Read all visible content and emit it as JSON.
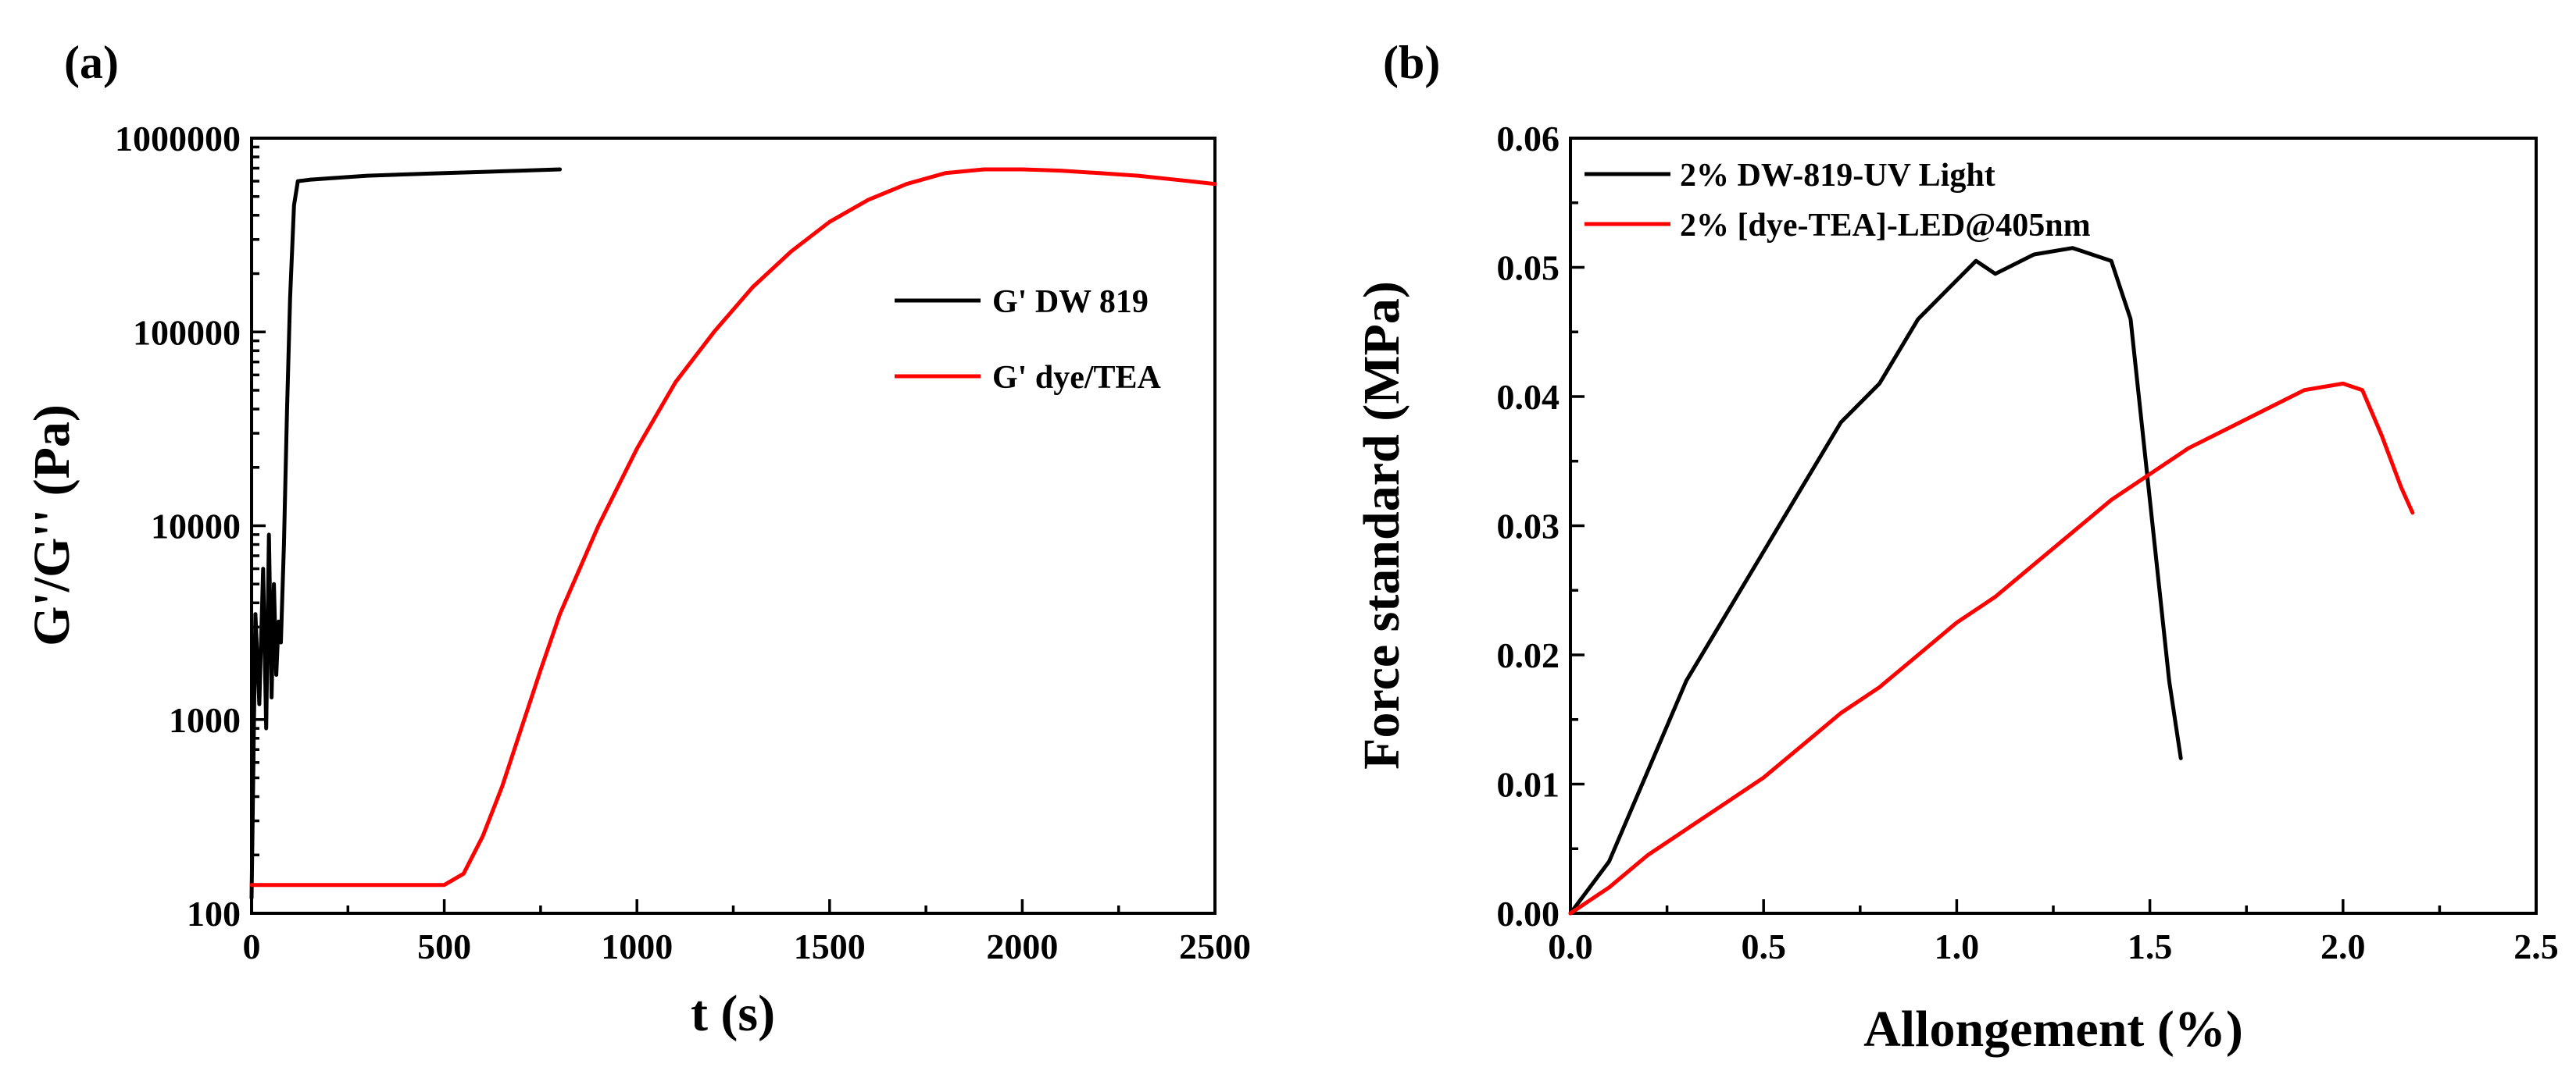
{
  "chart_data": [
    {
      "panel_label": "(a)",
      "type": "line",
      "xlabel": "t (s)",
      "ylabel": "G'/G'' (Pa)",
      "xlim": [
        0,
        2500
      ],
      "ylim": [
        100,
        1000000
      ],
      "yscale": "log",
      "xticks": [
        0,
        500,
        1000,
        1500,
        2000,
        2500
      ],
      "xtick_labels": [
        "0",
        "500",
        "1000",
        "1500",
        "2000",
        "2500"
      ],
      "yticks": [
        100,
        1000,
        10000,
        100000,
        1000000
      ],
      "ytick_labels": [
        "100",
        "1000",
        "10000",
        "100000",
        "1000000"
      ],
      "legend_position": "right",
      "series": [
        {
          "name": "G' DW 819",
          "color": "#000000",
          "x": [
            0,
            10,
            20,
            30,
            38,
            45,
            52,
            58,
            64,
            70,
            76,
            84,
            92,
            100,
            110,
            120,
            150,
            200,
            300,
            400,
            500,
            600,
            700,
            800
          ],
          "y": [
            120,
            3500,
            1200,
            6000,
            900,
            9000,
            1300,
            5000,
            1700,
            3200,
            2500,
            8000,
            40000,
            150000,
            450000,
            600000,
            610000,
            620000,
            640000,
            650000,
            660000,
            670000,
            680000,
            690000
          ]
        },
        {
          "name": "G' dye/TEA",
          "color": "#ff0000",
          "x": [
            0,
            100,
            200,
            300,
            400,
            500,
            550,
            600,
            650,
            700,
            750,
            800,
            900,
            1000,
            1100,
            1200,
            1300,
            1400,
            1500,
            1600,
            1700,
            1800,
            1900,
            2000,
            2100,
            2200,
            2300,
            2400,
            2500
          ],
          "y": [
            140,
            140,
            140,
            140,
            140,
            140,
            160,
            250,
            450,
            900,
            1800,
            3500,
            10000,
            25000,
            55000,
            100000,
            170000,
            260000,
            370000,
            480000,
            580000,
            660000,
            690000,
            690000,
            680000,
            660000,
            640000,
            610000,
            580000
          ]
        }
      ]
    },
    {
      "panel_label": "(b)",
      "type": "line",
      "xlabel": "Allongement (%)",
      "ylabel": "Force standard (MPa)",
      "xlim": [
        0,
        2.5
      ],
      "ylim": [
        0,
        0.06
      ],
      "xticks": [
        0,
        0.5,
        1.0,
        1.5,
        2.0,
        2.5
      ],
      "xtick_labels": [
        "0.0",
        "0.5",
        "1.0",
        "1.5",
        "2.0",
        "2.5"
      ],
      "yticks": [
        0,
        0.01,
        0.02,
        0.03,
        0.04,
        0.05,
        0.06
      ],
      "ytick_labels": [
        "0.00",
        "0.01",
        "0.02",
        "0.03",
        "0.04",
        "0.05",
        "0.06"
      ],
      "legend_position": "top-left",
      "series": [
        {
          "name": "2% DW-819-UV Light",
          "color": "#000000",
          "x": [
            0,
            0.1,
            0.2,
            0.3,
            0.4,
            0.5,
            0.6,
            0.7,
            0.8,
            0.9,
            1.0,
            1.05,
            1.1,
            1.2,
            1.3,
            1.4,
            1.45,
            1.5,
            1.55,
            1.58
          ],
          "y": [
            0,
            0.004,
            0.011,
            0.018,
            0.023,
            0.028,
            0.033,
            0.038,
            0.041,
            0.046,
            0.049,
            0.0505,
            0.0495,
            0.051,
            0.0515,
            0.0505,
            0.046,
            0.032,
            0.018,
            0.012
          ]
        },
        {
          "name": "2% [dye-TEA]-LED@405nm",
          "color": "#ff0000",
          "x": [
            0,
            0.1,
            0.2,
            0.3,
            0.4,
            0.5,
            0.6,
            0.7,
            0.8,
            0.9,
            1.0,
            1.1,
            1.2,
            1.3,
            1.4,
            1.5,
            1.6,
            1.7,
            1.8,
            1.9,
            2.0,
            2.05,
            2.1,
            2.15,
            2.18
          ],
          "y": [
            0,
            0.002,
            0.0045,
            0.0065,
            0.0085,
            0.0105,
            0.013,
            0.0155,
            0.0175,
            0.02,
            0.0225,
            0.0245,
            0.027,
            0.0295,
            0.032,
            0.034,
            0.036,
            0.0375,
            0.039,
            0.0405,
            0.041,
            0.0405,
            0.037,
            0.033,
            0.031
          ]
        }
      ]
    }
  ]
}
